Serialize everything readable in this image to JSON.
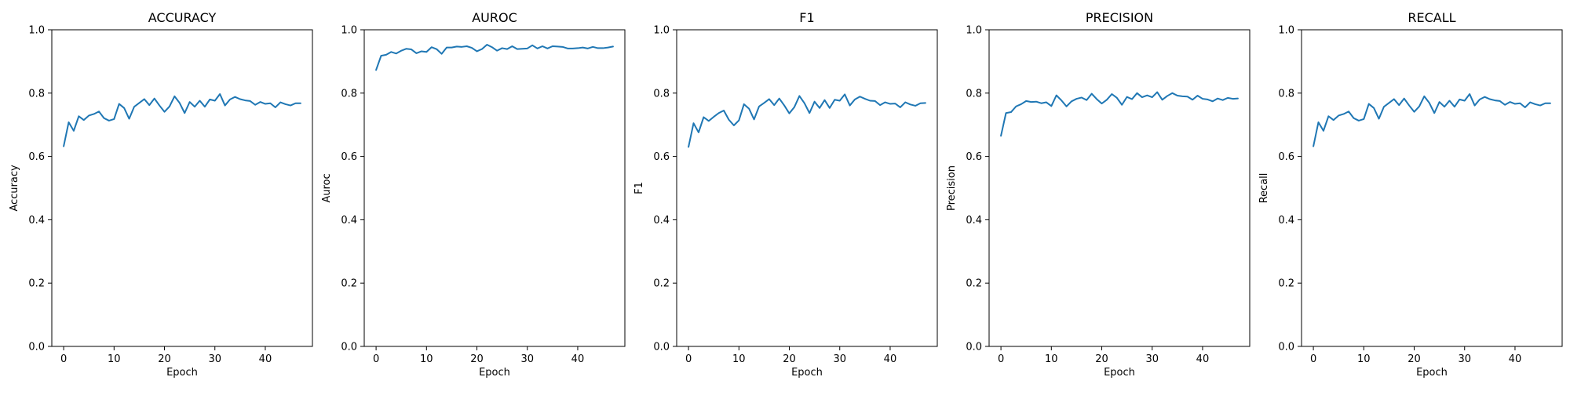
{
  "colors": {
    "line": "#1f77b4",
    "axes": "#000000",
    "background": "#ffffff"
  },
  "chart_data": [
    {
      "type": "line",
      "title": "ACCURACY",
      "xlabel": "Epoch",
      "ylabel": "Accuracy",
      "xlim": [
        -2.35,
        49.35
      ],
      "ylim": [
        0,
        1
      ],
      "xticks": [
        0,
        10,
        20,
        30,
        40
      ],
      "yticks": [
        0.0,
        0.2,
        0.4,
        0.6,
        0.8,
        1.0
      ],
      "grid": false,
      "series": [
        {
          "x": [
            0,
            1,
            2,
            3,
            4,
            5,
            6,
            7,
            8,
            9,
            10,
            11,
            12,
            13,
            14,
            15,
            16,
            17,
            18,
            19,
            20,
            21,
            22,
            23,
            24,
            25,
            26,
            27,
            28,
            29,
            30,
            31,
            32,
            33,
            34,
            35,
            36,
            37,
            38,
            39,
            40,
            41,
            42,
            43,
            44,
            45,
            46,
            47
          ],
          "values": [
            0.632,
            0.708,
            0.681,
            0.727,
            0.715,
            0.729,
            0.734,
            0.742,
            0.721,
            0.713,
            0.718,
            0.766,
            0.753,
            0.719,
            0.757,
            0.769,
            0.781,
            0.762,
            0.783,
            0.761,
            0.741,
            0.758,
            0.79,
            0.769,
            0.737,
            0.772,
            0.757,
            0.776,
            0.757,
            0.78,
            0.776,
            0.797,
            0.761,
            0.78,
            0.788,
            0.781,
            0.777,
            0.775,
            0.763,
            0.772,
            0.766,
            0.768,
            0.755,
            0.771,
            0.765,
            0.761,
            0.768,
            0.768
          ]
        }
      ]
    },
    {
      "type": "line",
      "title": "AUROC",
      "xlabel": "Epoch",
      "ylabel": "Auroc",
      "xlim": [
        -2.35,
        49.35
      ],
      "ylim": [
        0,
        1
      ],
      "xticks": [
        0,
        10,
        20,
        30,
        40
      ],
      "yticks": [
        0.0,
        0.2,
        0.4,
        0.6,
        0.8,
        1.0
      ],
      "grid": false,
      "series": [
        {
          "x": [
            0,
            1,
            2,
            3,
            4,
            5,
            6,
            7,
            8,
            9,
            10,
            11,
            12,
            13,
            14,
            15,
            16,
            17,
            18,
            19,
            20,
            21,
            22,
            23,
            24,
            25,
            26,
            27,
            28,
            29,
            30,
            31,
            32,
            33,
            34,
            35,
            36,
            37,
            38,
            39,
            40,
            41,
            42,
            43,
            44,
            45,
            46,
            47
          ],
          "values": [
            0.873,
            0.918,
            0.921,
            0.93,
            0.925,
            0.934,
            0.94,
            0.938,
            0.926,
            0.932,
            0.93,
            0.945,
            0.939,
            0.924,
            0.944,
            0.944,
            0.947,
            0.946,
            0.948,
            0.943,
            0.932,
            0.939,
            0.953,
            0.945,
            0.934,
            0.942,
            0.939,
            0.948,
            0.939,
            0.94,
            0.941,
            0.951,
            0.941,
            0.948,
            0.941,
            0.948,
            0.947,
            0.946,
            0.941,
            0.941,
            0.942,
            0.944,
            0.941,
            0.946,
            0.942,
            0.942,
            0.944,
            0.947
          ]
        }
      ]
    },
    {
      "type": "line",
      "title": "F1",
      "xlabel": "Epoch",
      "ylabel": "F1",
      "xlim": [
        -2.35,
        49.35
      ],
      "ylim": [
        0,
        1
      ],
      "xticks": [
        0,
        10,
        20,
        30,
        40
      ],
      "yticks": [
        0.0,
        0.2,
        0.4,
        0.6,
        0.8,
        1.0
      ],
      "grid": false,
      "series": [
        {
          "x": [
            0,
            1,
            2,
            3,
            4,
            5,
            6,
            7,
            8,
            9,
            10,
            11,
            12,
            13,
            14,
            15,
            16,
            17,
            18,
            19,
            20,
            21,
            22,
            23,
            24,
            25,
            26,
            27,
            28,
            29,
            30,
            31,
            32,
            33,
            34,
            35,
            36,
            37,
            38,
            39,
            40,
            41,
            42,
            43,
            44,
            45,
            46,
            47
          ],
          "values": [
            0.63,
            0.705,
            0.676,
            0.724,
            0.712,
            0.725,
            0.737,
            0.745,
            0.716,
            0.698,
            0.714,
            0.765,
            0.751,
            0.717,
            0.758,
            0.769,
            0.781,
            0.762,
            0.783,
            0.761,
            0.736,
            0.756,
            0.791,
            0.768,
            0.737,
            0.773,
            0.753,
            0.778,
            0.753,
            0.779,
            0.776,
            0.796,
            0.761,
            0.78,
            0.789,
            0.782,
            0.776,
            0.775,
            0.762,
            0.771,
            0.766,
            0.767,
            0.755,
            0.771,
            0.764,
            0.76,
            0.768,
            0.769
          ]
        }
      ]
    },
    {
      "type": "line",
      "title": "PRECISION",
      "xlabel": "Epoch",
      "ylabel": "Precision",
      "xlim": [
        -2.35,
        49.35
      ],
      "ylim": [
        0,
        1
      ],
      "xticks": [
        0,
        10,
        20,
        30,
        40
      ],
      "yticks": [
        0.0,
        0.2,
        0.4,
        0.6,
        0.8,
        1.0
      ],
      "grid": false,
      "series": [
        {
          "x": [
            0,
            1,
            2,
            3,
            4,
            5,
            6,
            7,
            8,
            9,
            10,
            11,
            12,
            13,
            14,
            15,
            16,
            17,
            18,
            19,
            20,
            21,
            22,
            23,
            24,
            25,
            26,
            27,
            28,
            29,
            30,
            31,
            32,
            33,
            34,
            35,
            36,
            37,
            38,
            39,
            40,
            41,
            42,
            43,
            44,
            45,
            46,
            47
          ],
          "values": [
            0.665,
            0.737,
            0.74,
            0.758,
            0.765,
            0.775,
            0.772,
            0.773,
            0.768,
            0.771,
            0.759,
            0.793,
            0.777,
            0.758,
            0.774,
            0.782,
            0.786,
            0.778,
            0.798,
            0.781,
            0.767,
            0.779,
            0.797,
            0.785,
            0.763,
            0.788,
            0.781,
            0.8,
            0.787,
            0.793,
            0.787,
            0.803,
            0.779,
            0.791,
            0.8,
            0.792,
            0.79,
            0.789,
            0.779,
            0.792,
            0.782,
            0.78,
            0.774,
            0.783,
            0.778,
            0.785,
            0.782,
            0.783
          ]
        }
      ]
    },
    {
      "type": "line",
      "title": "RECALL",
      "xlabel": "Epoch",
      "ylabel": "Recall",
      "xlim": [
        -2.35,
        49.35
      ],
      "ylim": [
        0,
        1
      ],
      "xticks": [
        0,
        10,
        20,
        30,
        40
      ],
      "yticks": [
        0.0,
        0.2,
        0.4,
        0.6,
        0.8,
        1.0
      ],
      "grid": false,
      "series": [
        {
          "x": [
            0,
            1,
            2,
            3,
            4,
            5,
            6,
            7,
            8,
            9,
            10,
            11,
            12,
            13,
            14,
            15,
            16,
            17,
            18,
            19,
            20,
            21,
            22,
            23,
            24,
            25,
            26,
            27,
            28,
            29,
            30,
            31,
            32,
            33,
            34,
            35,
            36,
            37,
            38,
            39,
            40,
            41,
            42,
            43,
            44,
            45,
            46,
            47
          ],
          "values": [
            0.632,
            0.708,
            0.681,
            0.727,
            0.715,
            0.729,
            0.734,
            0.742,
            0.721,
            0.713,
            0.718,
            0.766,
            0.753,
            0.719,
            0.757,
            0.769,
            0.781,
            0.762,
            0.783,
            0.761,
            0.741,
            0.758,
            0.79,
            0.769,
            0.737,
            0.772,
            0.757,
            0.776,
            0.757,
            0.78,
            0.776,
            0.797,
            0.761,
            0.78,
            0.788,
            0.781,
            0.777,
            0.775,
            0.763,
            0.772,
            0.766,
            0.768,
            0.755,
            0.771,
            0.765,
            0.761,
            0.768,
            0.768
          ]
        }
      ]
    }
  ]
}
